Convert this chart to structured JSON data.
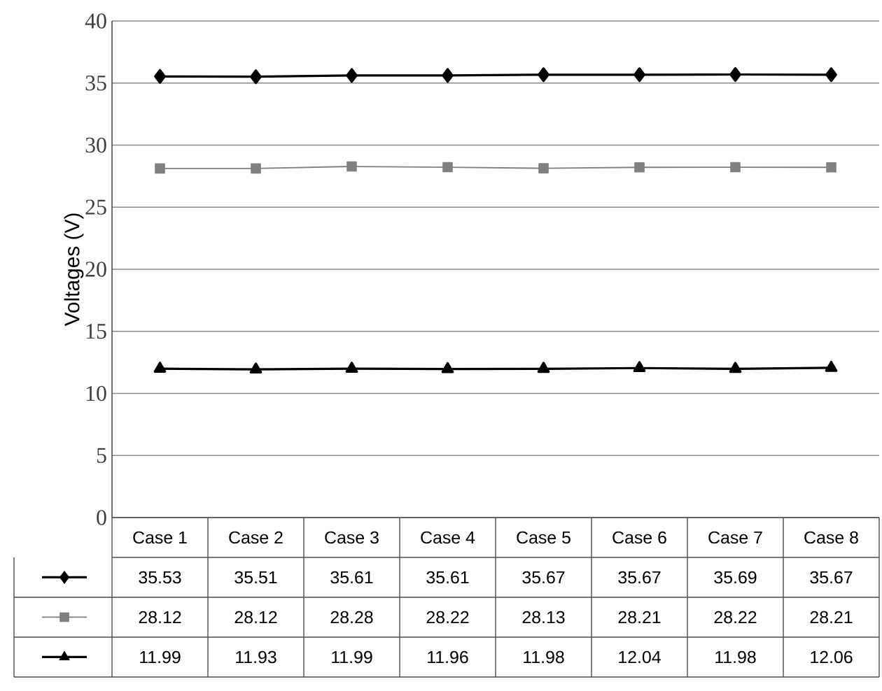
{
  "chart_data": {
    "type": "line",
    "ylabel": "Voltages (V)",
    "categories": [
      "Case 1",
      "Case 2",
      "Case 3",
      "Case 4",
      "Case 5",
      "Case 6",
      "Case 7",
      "Case 8"
    ],
    "series": [
      {
        "color": "#000000",
        "marker": "diamond",
        "values": [
          35.53,
          35.51,
          35.61,
          35.61,
          35.67,
          35.67,
          35.69,
          35.67
        ]
      },
      {
        "color": "#808080",
        "marker": "square",
        "values": [
          28.12,
          28.12,
          28.28,
          28.22,
          28.13,
          28.21,
          28.22,
          28.21
        ]
      },
      {
        "color": "#000000",
        "marker": "triangle",
        "values": [
          11.99,
          11.93,
          11.99,
          11.96,
          11.98,
          12.04,
          11.98,
          12.06
        ]
      }
    ],
    "ylim": [
      0,
      40
    ],
    "yticks": [
      0,
      5,
      10,
      15,
      20,
      25,
      30,
      35,
      40
    ],
    "grid": "y",
    "data_labels": true,
    "line_style": "solid"
  }
}
